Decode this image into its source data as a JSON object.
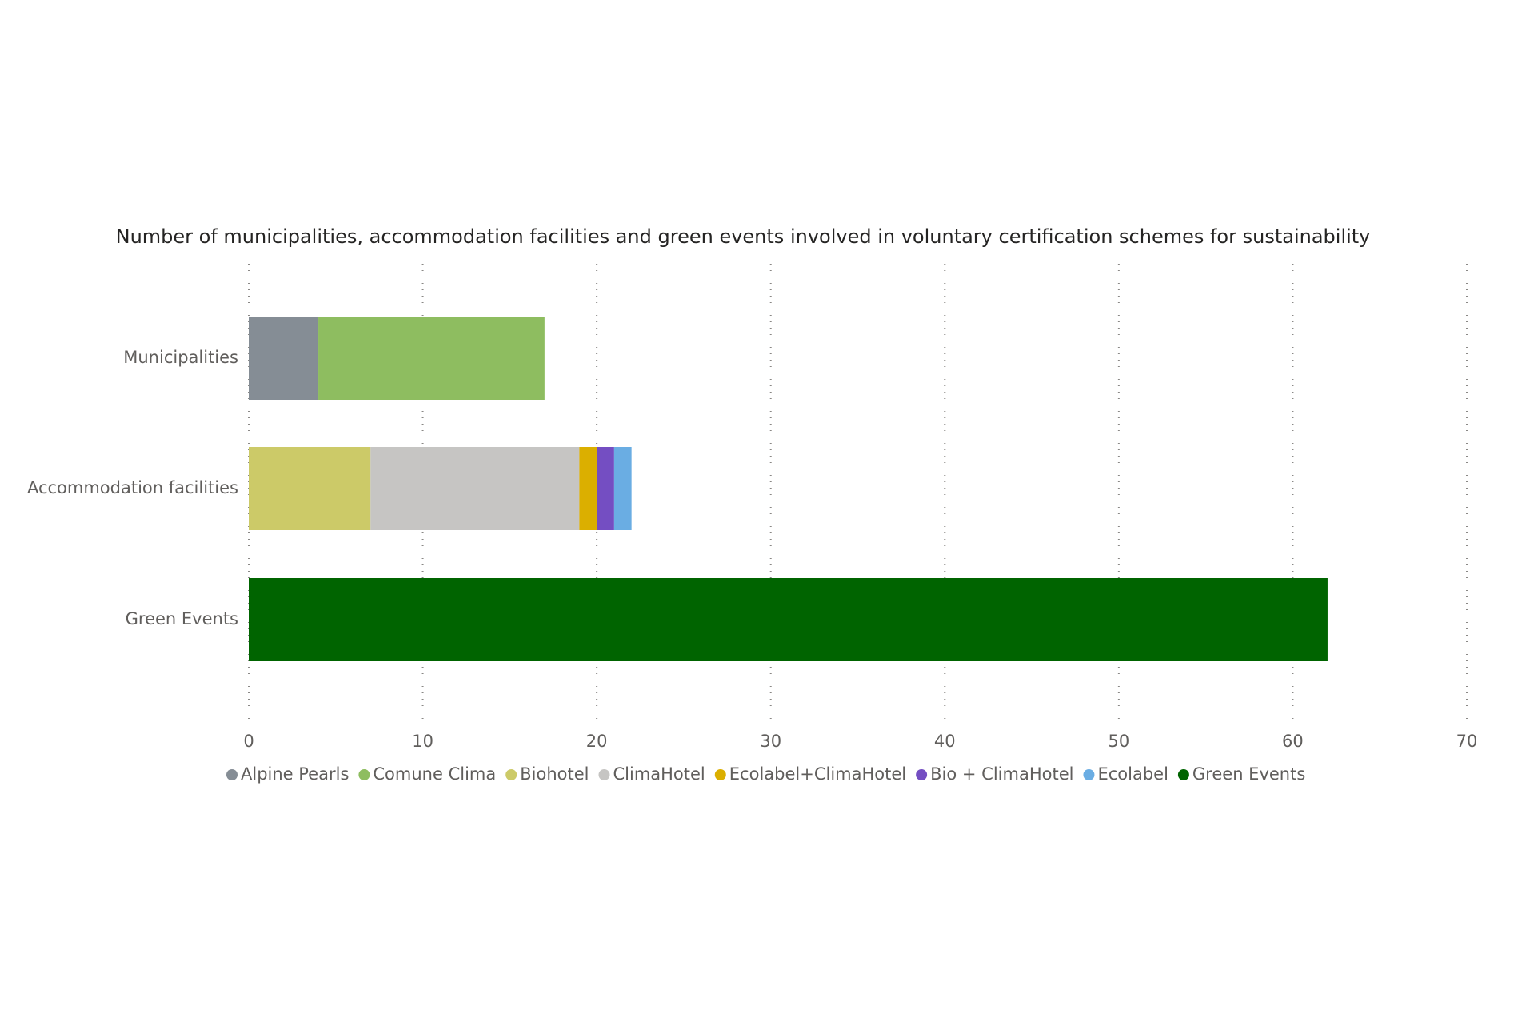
{
  "chart_data": {
    "type": "bar",
    "orientation": "horizontal",
    "stacked": true,
    "title": "Number of municipalities, accommodation facilities and green events involved in voluntary certification schemes for sustainability",
    "categories": [
      "Municipalities",
      "Accommodation facilities",
      "Green Events"
    ],
    "series": [
      {
        "name": "Alpine Pearls",
        "color": "#858d95",
        "values": [
          4,
          0,
          0
        ]
      },
      {
        "name": "Comune Clima",
        "color": "#8ebd60",
        "values": [
          13,
          0,
          0
        ]
      },
      {
        "name": "Biohotel",
        "color": "#ccca68",
        "values": [
          0,
          7,
          0
        ]
      },
      {
        "name": "ClimaHotel",
        "color": "#c6c5c3",
        "values": [
          0,
          12,
          0
        ]
      },
      {
        "name": "Ecolabel+ClimaHotel",
        "color": "#dbaf00",
        "values": [
          0,
          1,
          0
        ]
      },
      {
        "name": "Bio + ClimaHotel",
        "color": "#744ec2",
        "values": [
          0,
          1,
          0
        ]
      },
      {
        "name": "Ecolabel",
        "color": "#6aade3",
        "values": [
          0,
          1,
          0
        ]
      },
      {
        "name": "Green Events",
        "color": "#006400",
        "values": [
          0,
          0,
          62
        ]
      }
    ],
    "xlim": [
      0,
      70
    ],
    "xticks": [
      "0",
      "10",
      "20",
      "30",
      "40",
      "50",
      "60",
      "70"
    ],
    "xlabel": "",
    "ylabel": "",
    "grid": "vertical dotted",
    "legend_position": "bottom"
  }
}
